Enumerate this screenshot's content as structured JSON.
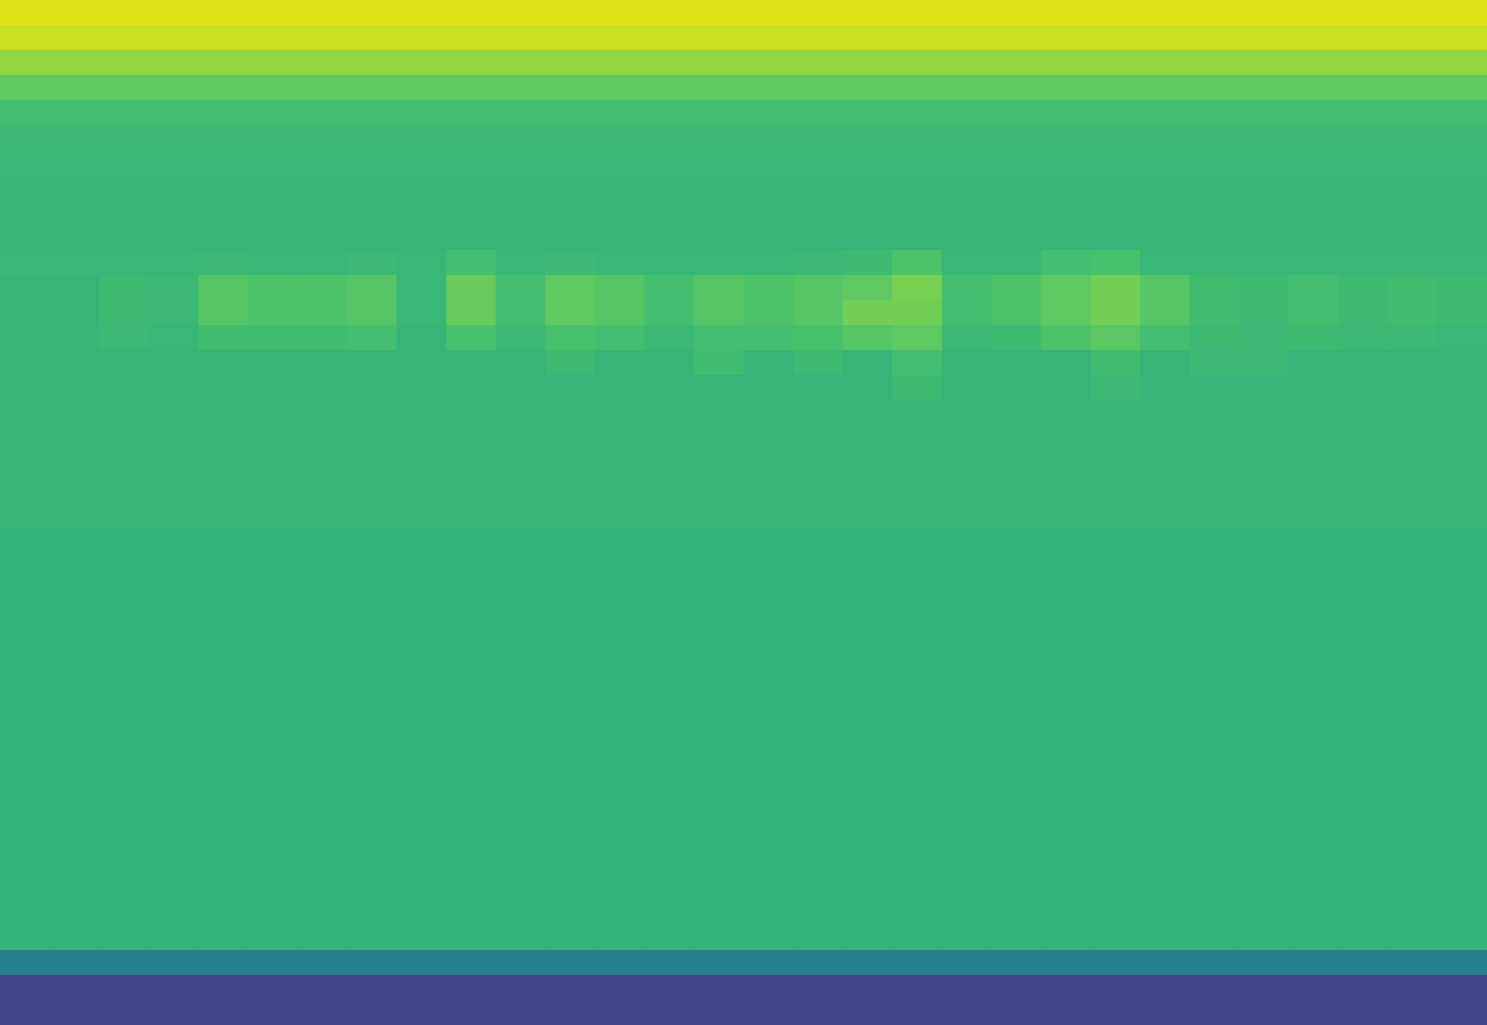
{
  "chart_data": {
    "type": "heatmap",
    "tick_labels": false,
    "cells": [
      [
        90,
        90,
        90,
        90,
        90,
        90,
        90,
        90,
        90,
        90,
        90,
        90,
        90,
        90,
        90,
        90,
        90,
        90,
        90,
        90,
        90,
        90,
        90,
        90,
        90,
        90,
        90,
        90,
        90,
        90
      ],
      [
        86,
        86,
        86,
        86,
        86,
        86,
        86,
        86,
        86,
        86,
        86,
        86,
        86,
        86,
        86,
        86,
        86,
        86,
        86,
        86,
        86,
        86,
        86,
        86,
        86,
        86,
        86,
        86,
        86,
        86
      ],
      [
        76,
        76,
        76,
        76,
        76,
        76,
        76,
        76,
        76,
        76,
        76,
        76,
        76,
        76,
        76,
        76,
        76,
        76,
        76,
        76,
        76,
        76,
        76,
        76,
        76,
        76,
        76,
        76,
        76,
        76
      ],
      [
        66,
        66,
        66,
        66,
        66,
        66,
        66,
        66,
        66,
        66,
        66,
        66,
        66,
        66,
        66,
        66,
        66,
        66,
        66,
        66,
        66,
        66,
        66,
        66,
        66,
        66,
        66,
        66,
        66,
        66
      ],
      [
        60,
        60,
        60,
        60,
        60,
        60,
        60,
        60,
        60,
        60,
        60,
        60,
        60,
        60,
        60,
        60,
        60,
        60,
        60,
        60,
        60,
        60,
        60,
        60,
        60,
        60,
        60,
        60,
        60,
        60
      ],
      [
        57,
        57,
        57,
        57,
        57,
        57,
        57,
        57,
        57,
        57,
        57,
        57,
        57,
        57,
        57,
        57,
        57,
        57,
        57,
        57,
        57,
        57,
        57,
        57,
        57,
        57,
        57,
        57,
        57,
        57
      ],
      [
        56,
        56,
        56,
        56,
        56,
        56,
        56,
        56,
        56,
        56,
        56,
        56,
        56,
        56,
        56,
        56,
        56,
        56,
        56,
        56,
        56,
        56,
        56,
        56,
        56,
        56,
        56,
        56,
        56,
        56
      ],
      [
        55,
        55,
        55,
        55,
        55,
        55,
        55,
        55,
        55,
        55,
        55,
        55,
        55,
        55,
        55,
        55,
        55,
        55,
        55,
        55,
        55,
        55,
        55,
        55,
        55,
        55,
        55,
        55,
        55,
        55
      ],
      [
        55,
        55,
        55,
        55,
        55,
        55,
        55,
        55,
        55,
        55,
        55,
        55,
        55,
        55,
        55,
        55,
        55,
        55,
        55,
        55,
        55,
        55,
        55,
        55,
        55,
        55,
        55,
        55,
        55,
        55
      ],
      [
        55,
        55,
        55,
        55,
        55,
        55,
        55,
        55,
        55,
        55,
        55,
        55,
        55,
        55,
        55,
        55,
        55,
        55,
        55,
        55,
        55,
        55,
        55,
        55,
        55,
        55,
        55,
        55,
        55,
        55
      ],
      [
        56,
        56,
        56,
        56,
        57,
        56,
        56,
        57,
        56,
        60,
        56,
        57,
        56,
        56,
        56,
        56,
        57,
        58,
        62,
        56,
        56,
        60,
        61,
        56,
        56,
        56,
        56,
        56,
        56,
        56
      ],
      [
        55,
        55,
        58,
        57,
        64,
        62,
        62,
        64,
        56,
        68,
        60,
        66,
        64,
        60,
        64,
        62,
        64,
        66,
        72,
        60,
        62,
        66,
        70,
        64,
        59,
        58,
        60,
        58,
        59,
        58
      ],
      [
        55,
        55,
        58,
        57,
        64,
        62,
        62,
        64,
        56,
        68,
        60,
        66,
        64,
        60,
        64,
        62,
        64,
        70,
        70,
        60,
        62,
        66,
        70,
        64,
        59,
        58,
        60,
        58,
        59,
        58
      ],
      [
        55,
        55,
        57,
        56,
        59,
        59,
        59,
        60,
        55,
        61,
        57,
        61,
        60,
        57,
        60,
        60,
        61,
        64,
        66,
        57,
        58,
        62,
        65,
        60,
        58,
        57,
        58,
        57,
        57,
        56
      ],
      [
        55,
        55,
        55,
        55,
        55,
        55,
        55,
        55,
        55,
        55,
        55,
        58,
        55,
        55,
        59,
        55,
        58,
        55,
        60,
        55,
        55,
        55,
        59,
        55,
        57,
        57,
        55,
        55,
        55,
        55
      ],
      [
        55,
        55,
        55,
        55,
        55,
        55,
        55,
        55,
        55,
        55,
        55,
        55,
        55,
        55,
        55,
        55,
        55,
        55,
        58,
        55,
        55,
        55,
        57,
        55,
        55,
        55,
        55,
        55,
        55,
        55
      ],
      [
        55,
        55,
        55,
        55,
        55,
        55,
        55,
        55,
        55,
        55,
        55,
        55,
        55,
        55,
        55,
        55,
        55,
        55,
        55,
        55,
        55,
        55,
        55,
        55,
        55,
        55,
        55,
        55,
        55,
        55
      ],
      [
        55,
        55,
        55,
        55,
        55,
        55,
        55,
        55,
        55,
        55,
        55,
        55,
        55,
        55,
        55,
        55,
        55,
        55,
        55,
        55,
        55,
        55,
        55,
        55,
        55,
        55,
        55,
        55,
        55,
        55
      ],
      [
        55,
        55,
        55,
        55,
        55,
        55,
        55,
        55,
        55,
        55,
        55,
        55,
        55,
        55,
        55,
        55,
        55,
        55,
        55,
        55,
        55,
        55,
        55,
        55,
        55,
        55,
        55,
        55,
        55,
        55
      ],
      [
        55,
        55,
        55,
        55,
        55,
        55,
        55,
        55,
        55,
        55,
        55,
        55,
        55,
        55,
        55,
        55,
        55,
        55,
        55,
        55,
        55,
        55,
        55,
        55,
        55,
        55,
        55,
        55,
        55,
        55
      ],
      [
        55,
        55,
        55,
        55,
        55,
        55,
        55,
        55,
        55,
        55,
        55,
        55,
        55,
        55,
        55,
        55,
        55,
        55,
        55,
        55,
        55,
        55,
        55,
        55,
        55,
        55,
        55,
        55,
        55,
        55
      ],
      [
        54,
        54,
        54,
        54,
        54,
        54,
        54,
        54,
        54,
        54,
        54,
        54,
        54,
        54,
        54,
        54,
        54,
        54,
        54,
        54,
        54,
        54,
        54,
        54,
        54,
        54,
        54,
        54,
        54,
        54
      ],
      [
        54,
        54,
        54,
        54,
        54,
        54,
        54,
        54,
        54,
        54,
        54,
        54,
        54,
        54,
        54,
        54,
        54,
        54,
        54,
        54,
        54,
        54,
        54,
        54,
        54,
        54,
        54,
        54,
        54,
        54
      ],
      [
        54,
        54,
        54,
        54,
        54,
        54,
        54,
        54,
        54,
        54,
        54,
        54,
        54,
        54,
        54,
        54,
        54,
        54,
        54,
        54,
        54,
        54,
        54,
        54,
        54,
        54,
        54,
        54,
        54,
        54
      ],
      [
        54,
        54,
        54,
        54,
        54,
        54,
        54,
        54,
        54,
        54,
        54,
        54,
        54,
        54,
        54,
        54,
        54,
        54,
        54,
        54,
        54,
        54,
        54,
        54,
        54,
        54,
        54,
        54,
        54,
        54
      ],
      [
        54,
        54,
        54,
        54,
        54,
        54,
        54,
        54,
        54,
        54,
        54,
        54,
        54,
        54,
        54,
        54,
        54,
        54,
        54,
        54,
        54,
        54,
        54,
        54,
        54,
        54,
        54,
        54,
        54,
        54
      ],
      [
        54,
        54,
        54,
        54,
        54,
        54,
        54,
        54,
        54,
        54,
        54,
        54,
        54,
        54,
        54,
        54,
        54,
        54,
        54,
        54,
        54,
        54,
        54,
        54,
        54,
        54,
        54,
        54,
        54,
        54
      ],
      [
        54,
        54,
        54,
        54,
        54,
        54,
        54,
        54,
        54,
        54,
        54,
        54,
        54,
        54,
        54,
        54,
        54,
        54,
        54,
        54,
        54,
        54,
        54,
        54,
        54,
        54,
        54,
        54,
        54,
        54
      ],
      [
        54,
        54,
        54,
        54,
        54,
        54,
        54,
        54,
        54,
        54,
        54,
        54,
        54,
        54,
        54,
        54,
        54,
        54,
        54,
        54,
        54,
        54,
        54,
        54,
        54,
        54,
        54,
        54,
        54,
        54
      ],
      [
        54,
        54,
        54,
        54,
        54,
        54,
        54,
        54,
        54,
        54,
        54,
        54,
        54,
        54,
        54,
        54,
        54,
        54,
        54,
        54,
        54,
        54,
        54,
        54,
        54,
        54,
        54,
        54,
        54,
        54
      ],
      [
        54,
        54,
        54,
        54,
        54,
        54,
        54,
        54,
        54,
        54,
        54,
        54,
        54,
        54,
        54,
        54,
        54,
        54,
        54,
        54,
        54,
        54,
        54,
        54,
        54,
        54,
        54,
        54,
        54,
        54
      ],
      [
        54,
        54,
        54,
        54,
        54,
        54,
        54,
        54,
        54,
        54,
        54,
        54,
        54,
        54,
        54,
        54,
        54,
        54,
        54,
        54,
        54,
        54,
        54,
        54,
        54,
        54,
        54,
        54,
        54,
        54
      ],
      [
        54,
        54,
        54,
        54,
        54,
        54,
        54,
        54,
        54,
        54,
        54,
        54,
        54,
        54,
        54,
        54,
        54,
        54,
        54,
        54,
        54,
        54,
        54,
        54,
        54,
        54,
        54,
        54,
        54,
        54
      ],
      [
        54,
        54,
        54,
        54,
        54,
        54,
        54,
        54,
        54,
        54,
        54,
        54,
        54,
        54,
        54,
        54,
        54,
        54,
        54,
        54,
        54,
        54,
        54,
        54,
        54,
        54,
        54,
        54,
        54,
        54
      ],
      [
        54,
        54,
        54,
        54,
        54,
        54,
        54,
        54,
        54,
        54,
        54,
        54,
        54,
        54,
        54,
        54,
        54,
        54,
        54,
        54,
        54,
        54,
        54,
        54,
        54,
        54,
        54,
        54,
        54,
        54
      ],
      [
        54,
        54,
        54,
        54,
        54,
        54,
        54,
        54,
        54,
        54,
        54,
        54,
        54,
        54,
        54,
        54,
        54,
        54,
        54,
        54,
        54,
        54,
        54,
        54,
        54,
        54,
        54,
        54,
        54,
        54
      ],
      [
        54,
        54,
        54,
        54,
        54,
        54,
        54,
        54,
        54,
        54,
        54,
        54,
        54,
        54,
        54,
        54,
        54,
        54,
        54,
        54,
        54,
        54,
        54,
        54,
        54,
        54,
        54,
        54,
        54,
        54
      ],
      [
        54,
        54,
        54,
        54,
        54,
        54,
        54,
        54,
        54,
        54,
        54,
        54,
        54,
        54,
        54,
        54,
        54,
        54,
        54,
        54,
        54,
        54,
        54,
        54,
        54,
        54,
        54,
        54,
        54,
        54
      ],
      [
        28,
        28,
        28,
        28,
        28,
        28,
        28,
        28,
        28,
        28,
        28,
        28,
        28,
        28,
        28,
        28,
        28,
        28,
        28,
        28,
        28,
        28,
        28,
        28,
        28,
        28,
        28,
        28,
        28,
        28
      ],
      [
        0,
        0,
        0,
        0,
        0,
        0,
        0,
        0,
        0,
        0,
        0,
        0,
        0,
        0,
        0,
        0,
        0,
        0,
        0,
        0,
        0,
        0,
        0,
        0,
        0,
        0,
        0,
        0,
        0,
        0
      ],
      [
        0,
        0,
        0,
        0,
        0,
        0,
        0,
        0,
        0,
        0,
        0,
        0,
        0,
        0,
        0,
        0,
        0,
        0,
        0,
        0,
        0,
        0,
        0,
        0,
        0,
        0,
        0,
        0,
        0,
        0
      ]
    ]
  }
}
